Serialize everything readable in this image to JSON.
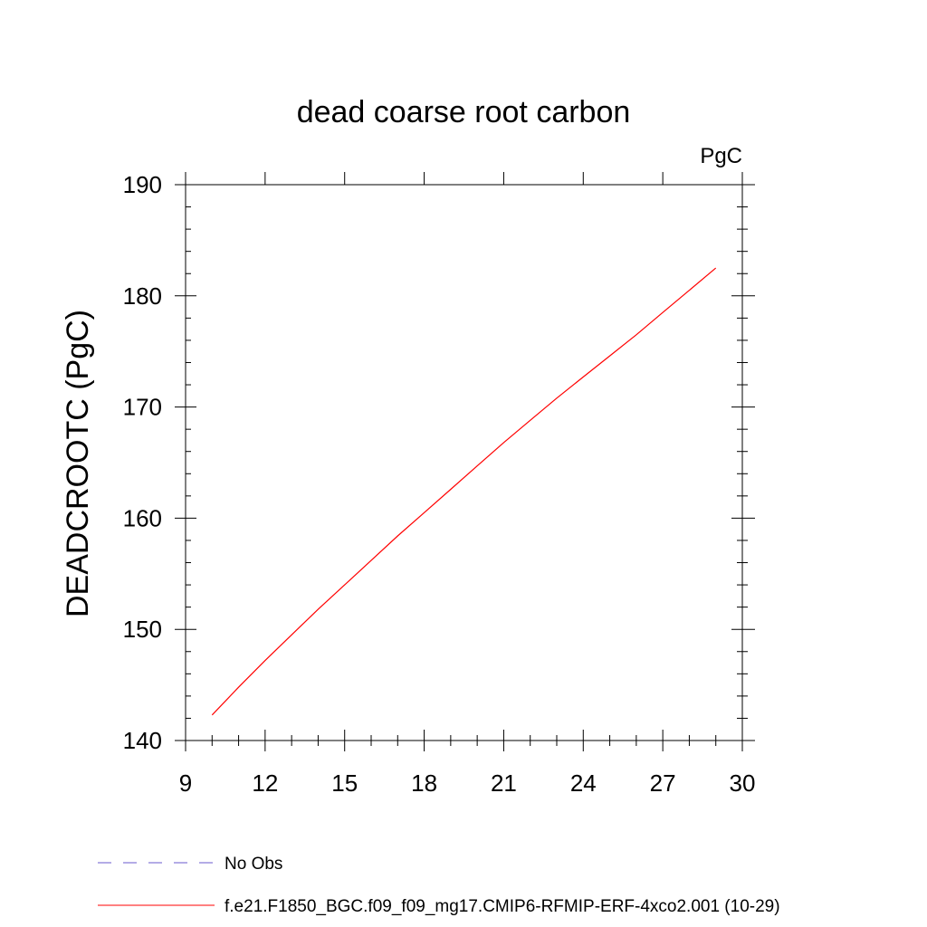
{
  "chart_data": {
    "type": "line",
    "title": "dead coarse root carbon",
    "units_label": "PgC",
    "ylabel": "DEADCROOTC  (PgC)",
    "xlabel": "",
    "xlim": [
      9,
      30
    ],
    "ylim": [
      140,
      190
    ],
    "x_ticks": [
      9,
      12,
      15,
      18,
      21,
      24,
      27,
      30
    ],
    "y_ticks": [
      140,
      150,
      160,
      170,
      180,
      190
    ],
    "grid": false,
    "legend_position": "bottom",
    "series": [
      {
        "name": "f.e21.F1850_BGC.f09_f09_mg17.CMIP6-RFMIP-ERF-4xco2.001 (10-29)",
        "color": "#ff0000",
        "style": "solid",
        "x": [
          10,
          11,
          12,
          13,
          14,
          15,
          16,
          17,
          18,
          19,
          20,
          21,
          22,
          23,
          24,
          25,
          26,
          27,
          28,
          29
        ],
        "y": [
          142.3,
          144.8,
          147.2,
          149.5,
          151.8,
          154.0,
          156.2,
          158.4,
          160.5,
          162.6,
          164.7,
          166.8,
          168.8,
          170.8,
          172.7,
          174.6,
          176.5,
          178.5,
          180.5,
          182.5
        ]
      }
    ],
    "legend": [
      {
        "label": "No Obs",
        "color": "#6a5acd",
        "style": "dashed"
      },
      {
        "label": "f.e21.F1850_BGC.f09_f09_mg17.CMIP6-RFMIP-ERF-4xco2.001 (10-29)",
        "color": "#ff0000",
        "style": "solid"
      }
    ]
  }
}
